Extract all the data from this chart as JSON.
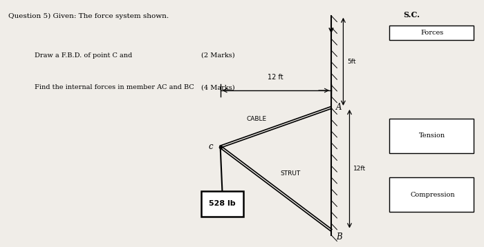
{
  "bg_color": "#f0ede8",
  "title_text": "Question 5) Given: The force system shown.",
  "sc_label": "S.C.",
  "line1_label": "Draw a F.B.D. of point C and",
  "line1_marks": "(2 Marks)",
  "line2_label": "Find the internal forces in member AC and BC",
  "line2_marks": "(4 Marks)",
  "dim_label": "12 ft",
  "cable_label": "CABLE",
  "strut_label": "STRUT",
  "c_label": "c",
  "a_label": "A",
  "b_label": "B",
  "dim_5ft": "5ft",
  "dim_12ft": "12ft",
  "load_label": "528 lb",
  "forces_label": "Forces",
  "tension_label": "Tension",
  "compression_label": "Compression"
}
